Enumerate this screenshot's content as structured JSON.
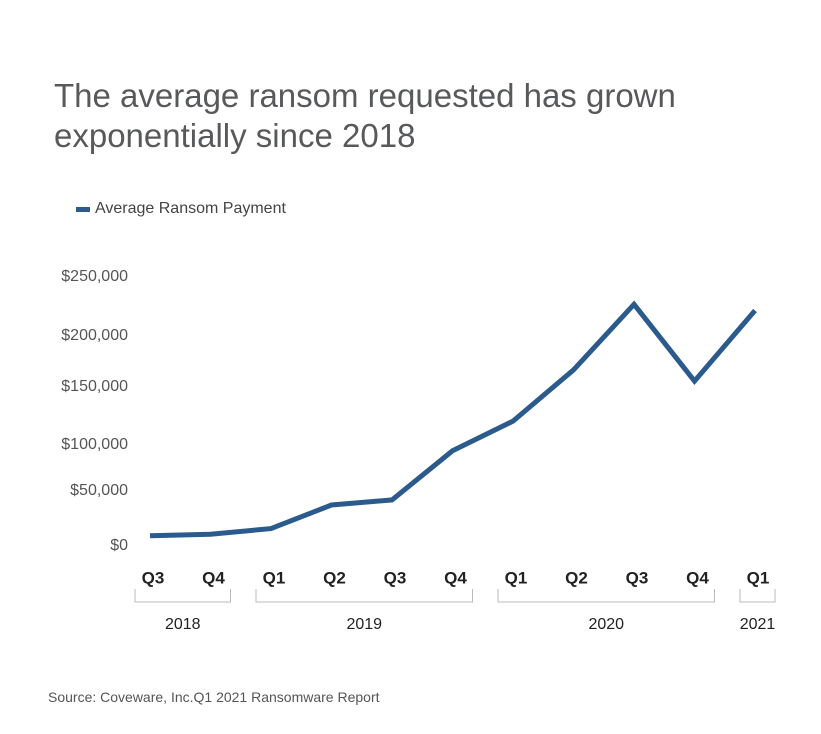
{
  "title": "The average ransom requested has grown exponentially since 2018",
  "source": "Source: Coveware, Inc.Q1 2021 Ransomware Report",
  "colors": {
    "series": "#2b5b8c",
    "bracket": "#bbbbbb",
    "title": "#58595b"
  },
  "chart_data": {
    "type": "line",
    "title": "The average ransom requested has grown exponentially since 2018",
    "xlabel": "",
    "ylabel": "",
    "ylim": [
      0,
      250000
    ],
    "yticks": [
      "$250,000",
      "$200,000",
      "$150,000",
      "$100,000",
      "$50,000",
      "$0"
    ],
    "ytick_values": [
      250000,
      200000,
      150000,
      100000,
      50000,
      0
    ],
    "categories": [
      "Q3",
      "Q4",
      "Q1",
      "Q2",
      "Q3",
      "Q4",
      "Q1",
      "Q2",
      "Q3",
      "Q4",
      "Q1"
    ],
    "year_groups": [
      {
        "label": "2018",
        "count": 2
      },
      {
        "label": "2019",
        "count": 4
      },
      {
        "label": "2020",
        "count": 4
      },
      {
        "label": "2021",
        "count": 1
      }
    ],
    "legend_position": "top-left",
    "grid": false,
    "series": [
      {
        "name": "Average Ransom Payment",
        "values": [
          10000,
          11500,
          17000,
          40000,
          45000,
          93000,
          122000,
          172000,
          236000,
          161000,
          230000
        ]
      }
    ]
  }
}
